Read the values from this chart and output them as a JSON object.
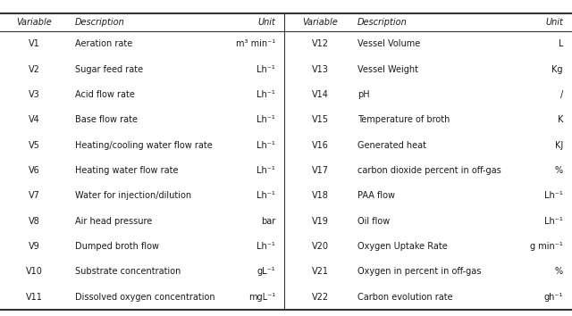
{
  "left_data": [
    [
      "V1",
      "Aeration rate",
      "m³ min⁻¹"
    ],
    [
      "V2",
      "Sugar feed rate",
      "Lh⁻¹"
    ],
    [
      "V3",
      "Acid flow rate",
      "Lh⁻¹"
    ],
    [
      "V4",
      "Base flow rate",
      "Lh⁻¹"
    ],
    [
      "V5",
      "Heating/cooling water flow rate",
      "Lh⁻¹"
    ],
    [
      "V6",
      "Heating water flow rate",
      "Lh⁻¹"
    ],
    [
      "V7",
      "Water for injection/dilution",
      "Lh⁻¹"
    ],
    [
      "V8",
      "Air head pressure",
      "bar"
    ],
    [
      "V9",
      "Dumped broth flow",
      "Lh⁻¹"
    ],
    [
      "V10",
      "Substrate concentration",
      "gL⁻¹"
    ],
    [
      "V11",
      "Dissolved oxygen concentration",
      "mgL⁻¹"
    ]
  ],
  "right_data": [
    [
      "V12",
      "Vessel Volume",
      "L"
    ],
    [
      "V13",
      "Vessel Weight",
      "Kg"
    ],
    [
      "V14",
      "pH",
      "/"
    ],
    [
      "V15",
      "Temperature of broth",
      "K"
    ],
    [
      "V16",
      "Generated heat",
      "KJ"
    ],
    [
      "V17",
      "carbon dioxide percent in off-gas",
      "%"
    ],
    [
      "V18",
      "PAA flow",
      "Lh⁻¹"
    ],
    [
      "V19",
      "Oil flow",
      "Lh⁻¹"
    ],
    [
      "V20",
      "Oxygen Uptake Rate",
      "g min⁻¹"
    ],
    [
      "V21",
      "Oxygen in percent in off-gas",
      "%"
    ],
    [
      "V22",
      "Carbon evolution rate",
      "gh⁻¹"
    ]
  ],
  "col_headers": [
    "Variable",
    "Description",
    "Unit"
  ],
  "bg_color": "#ffffff",
  "text_color": "#1a1a1a",
  "line_color": "#333333",
  "font_size": 7.0,
  "header_font_size": 7.0
}
